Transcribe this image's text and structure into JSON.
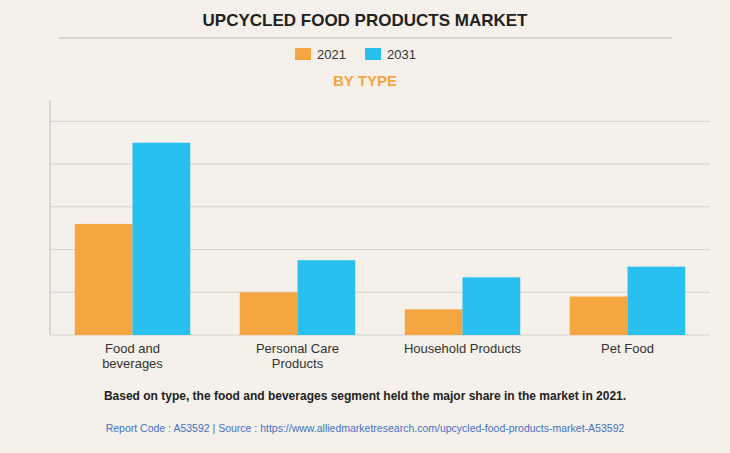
{
  "chart_data": {
    "type": "bar",
    "title": "UPCYCLED FOOD PRODUCTS MARKET",
    "subtitle": "BY TYPE",
    "categories": [
      "Food and\nbeverages",
      "Personal Care\nProducts",
      "Household Products",
      "Pet Food"
    ],
    "series": [
      {
        "name": "2021",
        "color": "#F5A641",
        "values": [
          52,
          20,
          12,
          18
        ]
      },
      {
        "name": "2031",
        "color": "#29C0F0",
        "values": [
          90,
          35,
          27,
          32
        ]
      }
    ],
    "ylim": [
      0,
      110
    ],
    "yticks": [
      0,
      20,
      40,
      60,
      80,
      100
    ],
    "grid": true,
    "legend": "top",
    "tick_labels": "x",
    "annotations": [
      "Based on type, the food and beverages segment held the major share in the market in 2021.",
      "Report Code : A53592  |  Source : https://www.alliedmarketresearch.com/upcycled-food-products-market-A53592"
    ]
  }
}
